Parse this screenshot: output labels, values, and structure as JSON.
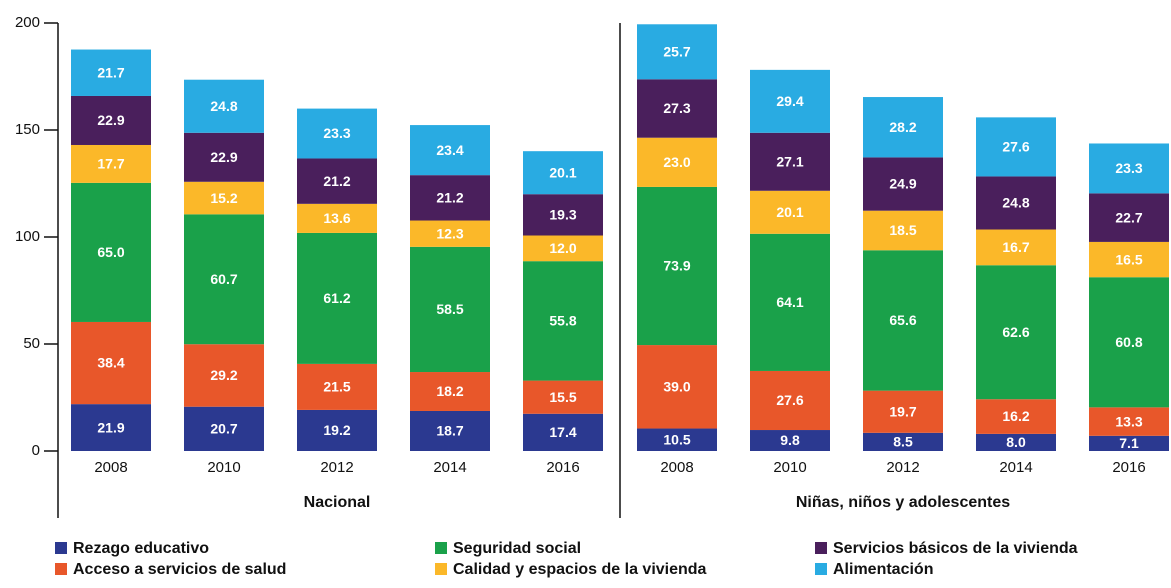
{
  "chart_data": {
    "type": "stacked_bar",
    "categories": [
      "2008",
      "2010",
      "2012",
      "2014",
      "2016",
      "2008",
      "2010",
      "2012",
      "2014",
      "2016"
    ],
    "groups": [
      "Nacional",
      "Niñas, niños y adolescentes"
    ],
    "ylim": [
      0,
      200
    ],
    "yticks": [
      0,
      50,
      100,
      150,
      200
    ],
    "legend": "bottom",
    "series": [
      {
        "name": "Rezago educativo",
        "color": "#2b3990",
        "values": [
          21.9,
          20.7,
          19.2,
          18.7,
          17.4,
          10.5,
          9.8,
          8.5,
          8.0,
          7.1
        ],
        "value_labels": [
          "21.9",
          "20.7",
          "19.2",
          "18.7",
          "17.4",
          "10.5",
          "9.8",
          "8.5",
          "8.0",
          "7.1"
        ]
      },
      {
        "name": "Acceso a servicios de salud",
        "color": "#e8572a",
        "values": [
          38.4,
          29.2,
          21.5,
          18.2,
          15.5,
          39.0,
          27.6,
          19.7,
          16.2,
          13.3
        ],
        "value_labels": [
          "38.4",
          "29.2",
          "21.5",
          "18.2",
          "15.5",
          "39.0",
          "27.6",
          "19.7",
          "16.2",
          "13.3"
        ]
      },
      {
        "name": "Seguridad social",
        "color": "#1aa14a",
        "values": [
          65.0,
          60.7,
          61.2,
          58.5,
          55.8,
          73.9,
          64.1,
          65.6,
          62.6,
          60.8
        ],
        "value_labels": [
          "65.0",
          "60.7",
          "61.2",
          "58.5",
          "55.8",
          "73.9",
          "64.1",
          "65.6",
          "62.6",
          "60.8"
        ]
      },
      {
        "name": "Calidad y espacios de la vivienda",
        "color": "#fbb829",
        "values": [
          17.7,
          15.2,
          13.6,
          12.3,
          12.0,
          23.0,
          20.1,
          18.5,
          16.7,
          16.5
        ],
        "value_labels": [
          "17.7",
          "15.2",
          "13.6",
          "12.3",
          "12.0",
          "23.0",
          "20.1",
          "18.5",
          "16.7",
          "16.5"
        ]
      },
      {
        "name": "Servicios básicos de la vivienda",
        "color": "#4a1f5c",
        "values": [
          22.9,
          22.9,
          21.2,
          21.2,
          19.3,
          27.3,
          27.1,
          24.9,
          24.8,
          22.7
        ],
        "value_labels": [
          "22.9",
          "22.9",
          "21.2",
          "21.2",
          "19.3",
          "27.3",
          "27.1",
          "24.9",
          "24.8",
          "22.7"
        ]
      },
      {
        "name": "Alimentación",
        "color": "#29abe2",
        "values": [
          21.7,
          24.8,
          23.3,
          23.4,
          20.1,
          25.7,
          29.4,
          28.2,
          27.6,
          23.3
        ],
        "value_labels": [
          "21.7",
          "24.8",
          "23.3",
          "23.4",
          "20.1",
          "25.7",
          "29.4",
          "28.2",
          "27.6",
          "23.3"
        ]
      }
    ]
  }
}
